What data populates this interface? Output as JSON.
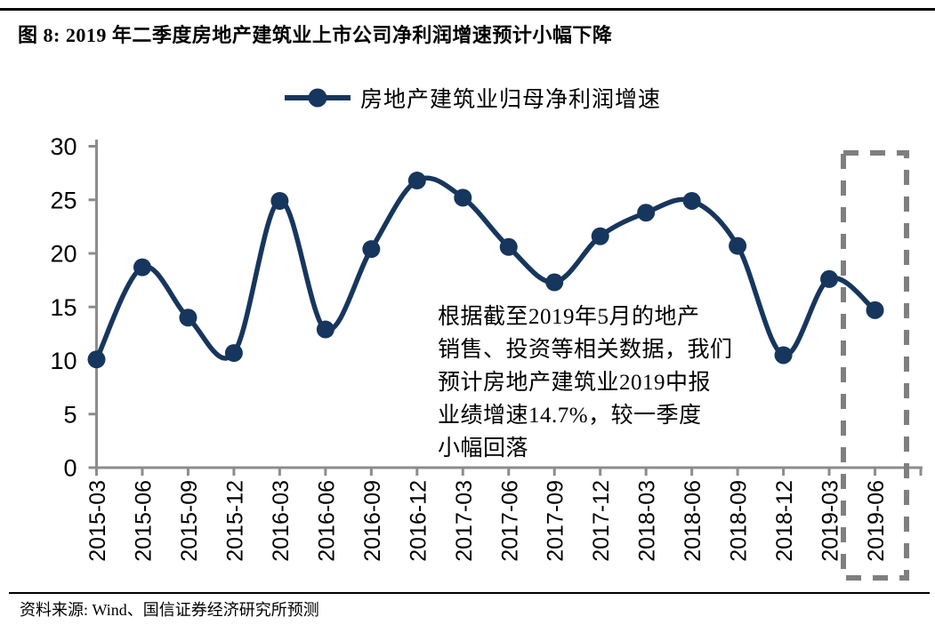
{
  "figure": {
    "title": "图 8: 2019 年二季度房地产建筑业上市公司净利润增速预计小幅下降",
    "source": "资料来源: Wind、国信证券经济研究所预测"
  },
  "legend": {
    "label": "房地产建筑业归母净利润增速",
    "marker": "line-with-circle"
  },
  "annotation": {
    "lines": [
      "根据截至2019年5月的地产",
      "销售、投资等相关数据，我们",
      "预计房地产建筑业2019中报",
      "业绩增速14.7%，较一季度",
      "小幅回落"
    ]
  },
  "colors": {
    "line": "#17365D",
    "marker": "#17365D",
    "axis": "#8C8C8C",
    "highlight_box": "#7F7F7F",
    "text": "#000000",
    "rule": "#000000"
  },
  "chart_data": {
    "type": "line",
    "title": "",
    "series_name": "房地产建筑业归母净利润增速",
    "categories": [
      "2015-03",
      "2015-06",
      "2015-09",
      "2015-12",
      "2016-03",
      "2016-06",
      "2016-09",
      "2016-12",
      "2017-03",
      "2017-06",
      "2017-09",
      "2017-12",
      "2018-03",
      "2018-06",
      "2018-09",
      "2018-12",
      "2019-03",
      "2019-06"
    ],
    "values": [
      10.1,
      18.7,
      14.0,
      10.7,
      24.9,
      12.9,
      20.4,
      26.8,
      25.2,
      20.6,
      17.3,
      21.6,
      23.8,
      24.9,
      20.7,
      10.5,
      17.6,
      14.7
    ],
    "xlabel": "",
    "ylabel": "",
    "ylim": [
      0,
      30
    ],
    "yticks": [
      0,
      5,
      10,
      15,
      20,
      25,
      30
    ],
    "grid": false,
    "smooth": true,
    "legend_position": "top",
    "highlight_category": "2019-06",
    "annotation_value_pct": "14.7%"
  }
}
